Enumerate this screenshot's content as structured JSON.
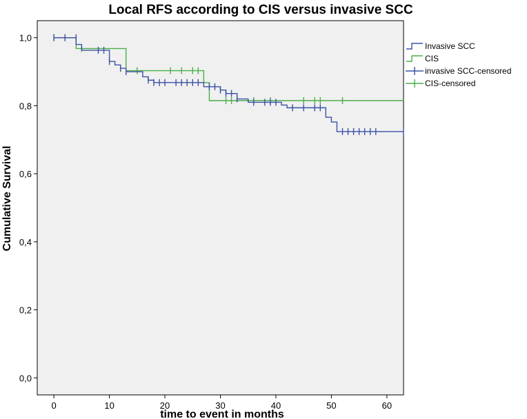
{
  "chart_data": {
    "type": "line",
    "subtype": "kaplan-meier-step",
    "title": "Local RFS according to CIS versus invasive SCC",
    "xlabel": "time to event in months",
    "ylabel": "Cumulative Survival",
    "xlim": [
      -3,
      63
    ],
    "ylim": [
      -0.05,
      1.05
    ],
    "x_ticks": [
      0,
      10,
      20,
      30,
      40,
      50,
      60
    ],
    "x_tick_labels": [
      "0",
      "10",
      "20",
      "30",
      "40",
      "50",
      "60"
    ],
    "y_ticks": [
      0.0,
      0.2,
      0.4,
      0.6,
      0.8,
      1.0
    ],
    "y_tick_labels": [
      "0,0",
      "0,2",
      "0,4",
      "0,6",
      "0,8",
      "1,0"
    ],
    "legend_position": "right",
    "legend": [
      "Invasive SCC",
      "CIS",
      "invasive SCC-censored",
      "CIS-censored"
    ],
    "series": [
      {
        "name": "Invasive SCC",
        "color": "#3b50a6",
        "step_x": [
          0,
          4,
          5,
          10,
          11,
          12,
          13,
          16,
          17,
          18,
          27,
          30,
          31,
          33,
          35,
          41,
          42,
          49,
          50,
          51,
          63
        ],
        "step_y": [
          1.0,
          0.98,
          0.963,
          0.93,
          0.92,
          0.91,
          0.9,
          0.885,
          0.875,
          0.868,
          0.856,
          0.846,
          0.836,
          0.82,
          0.81,
          0.802,
          0.794,
          0.766,
          0.752,
          0.724,
          0.724
        ],
        "censored_x": [
          0,
          2,
          4,
          8,
          9,
          10,
          12,
          13,
          17,
          18,
          19,
          20,
          22,
          23,
          24,
          25,
          26,
          28,
          29,
          30,
          31,
          32,
          33,
          36,
          38,
          39,
          40,
          43,
          45,
          47,
          48,
          52,
          53,
          54,
          55,
          56,
          57,
          58,
          63
        ],
        "censored_y": [
          1.0,
          1.0,
          1.0,
          0.963,
          0.963,
          0.93,
          0.91,
          0.9,
          0.875,
          0.868,
          0.868,
          0.868,
          0.868,
          0.868,
          0.868,
          0.868,
          0.868,
          0.856,
          0.856,
          0.846,
          0.836,
          0.836,
          0.82,
          0.81,
          0.81,
          0.81,
          0.81,
          0.794,
          0.794,
          0.794,
          0.794,
          0.724,
          0.724,
          0.724,
          0.724,
          0.724,
          0.724,
          0.724,
          0.724
        ]
      },
      {
        "name": "CIS",
        "color": "#4aad4a",
        "step_x": [
          0,
          4,
          13,
          27,
          28,
          63
        ],
        "step_y": [
          1.0,
          0.968,
          0.903,
          0.868,
          0.815,
          0.815
        ],
        "censored_x": [
          0,
          2,
          5,
          15,
          21,
          23,
          25,
          26,
          31,
          32,
          36,
          39,
          45,
          47,
          48,
          52
        ],
        "censored_y": [
          1.0,
          1.0,
          0.968,
          0.903,
          0.903,
          0.903,
          0.903,
          0.903,
          0.815,
          0.815,
          0.815,
          0.815,
          0.815,
          0.815,
          0.815,
          0.815
        ]
      }
    ]
  }
}
